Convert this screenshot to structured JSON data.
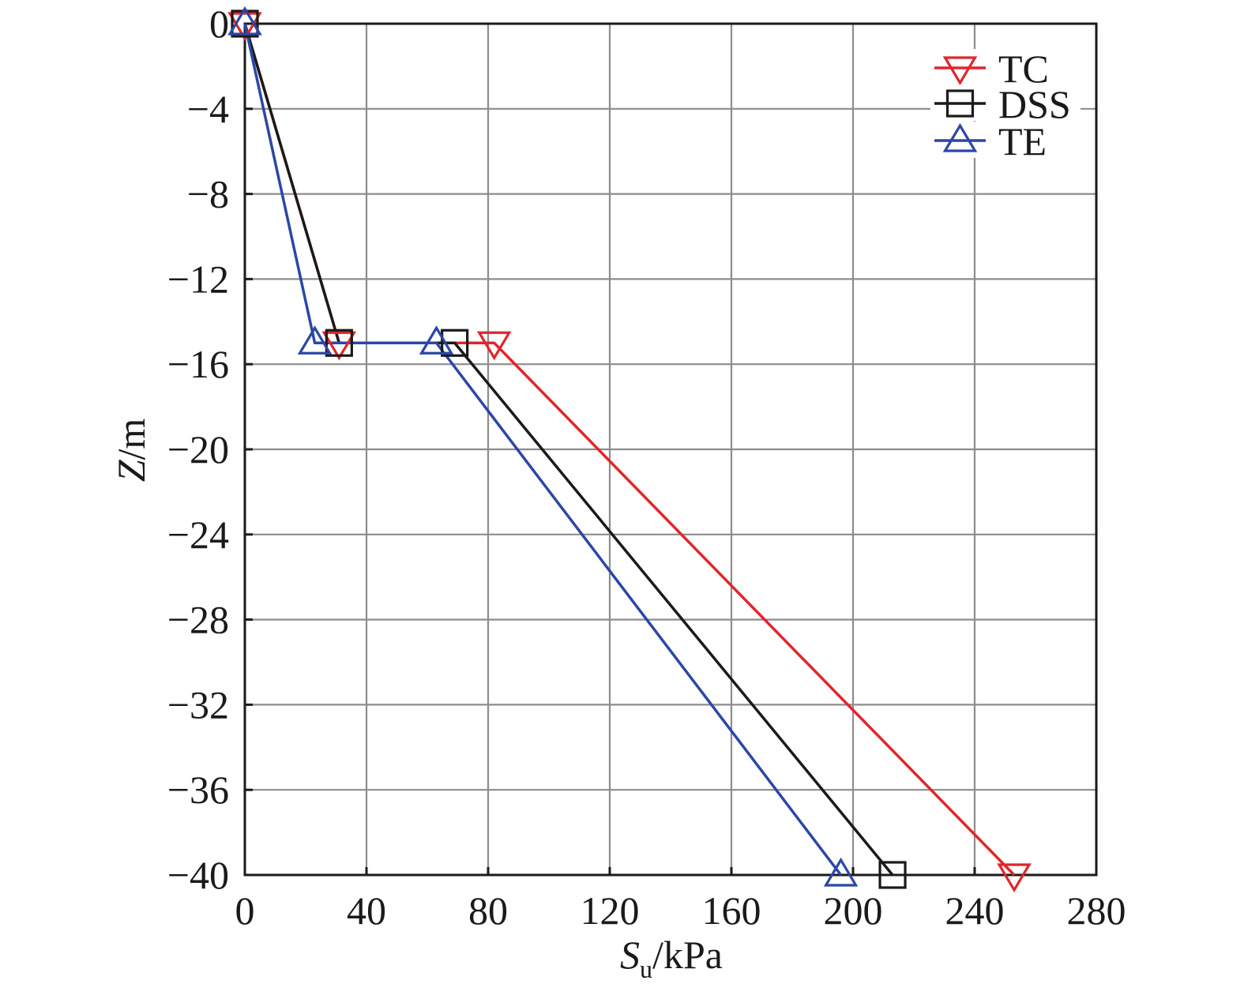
{
  "chart_data": {
    "type": "line",
    "xlabel_main": "S",
    "xlabel_sub": "u",
    "xlabel_unit": "/kPa",
    "ylabel_main": "Z",
    "ylabel_unit": "/m",
    "xlim": [
      0,
      280
    ],
    "ylim": [
      -40,
      0
    ],
    "xticks": [
      0,
      40,
      80,
      120,
      160,
      200,
      240,
      280
    ],
    "yticks": [
      0,
      -4,
      -8,
      -12,
      -16,
      -20,
      -24,
      -28,
      -32,
      -36,
      -40
    ],
    "xtick_labels": [
      "0",
      "40",
      "80",
      "120",
      "160",
      "200",
      "240",
      "280"
    ],
    "ytick_labels": [
      "0",
      "−4",
      "−8",
      "−12",
      "−16",
      "−20",
      "−24",
      "−28",
      "−32",
      "−36",
      "−40"
    ],
    "grid": true,
    "legend_position": "top-right",
    "series": [
      {
        "name": "TC",
        "color": "#e0262b",
        "marker": "triangle-down",
        "x": [
          0,
          31,
          82,
          253
        ],
        "y": [
          0,
          -15,
          -15,
          -40
        ]
      },
      {
        "name": "DSS",
        "color": "#1a1a1a",
        "marker": "square",
        "x": [
          0,
          31,
          69,
          213
        ],
        "y": [
          0,
          -15,
          -15,
          -40
        ]
      },
      {
        "name": "TE",
        "color": "#2b47a6",
        "marker": "triangle-up",
        "x": [
          0,
          23,
          63,
          196
        ],
        "y": [
          0,
          -15,
          -15,
          -40
        ]
      }
    ]
  }
}
